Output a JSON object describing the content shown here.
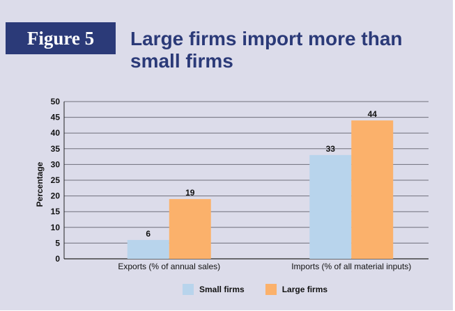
{
  "figure": {
    "badge": "Figure 5",
    "title": "Large firms import more than small firms"
  },
  "colors": {
    "small": "#b8d4ec",
    "large": "#fbb16b",
    "grid": "#6f6f7a",
    "badge_bg": "#2b3a78",
    "panel_bg": "#dcdcea"
  },
  "chart_data": {
    "type": "bar",
    "categories": [
      "Exports (% of annual sales)",
      "Imports (% of all material inputs)"
    ],
    "series": [
      {
        "name": "Small firms",
        "values": [
          6,
          33
        ]
      },
      {
        "name": "Large firms",
        "values": [
          19,
          44
        ]
      }
    ],
    "ylabel": "Percentage",
    "xlabel": "",
    "ylim": [
      0,
      50
    ],
    "yticks": [
      0,
      5,
      10,
      15,
      20,
      25,
      30,
      35,
      40,
      45,
      50
    ],
    "grid": true,
    "legend_position": "bottom"
  }
}
